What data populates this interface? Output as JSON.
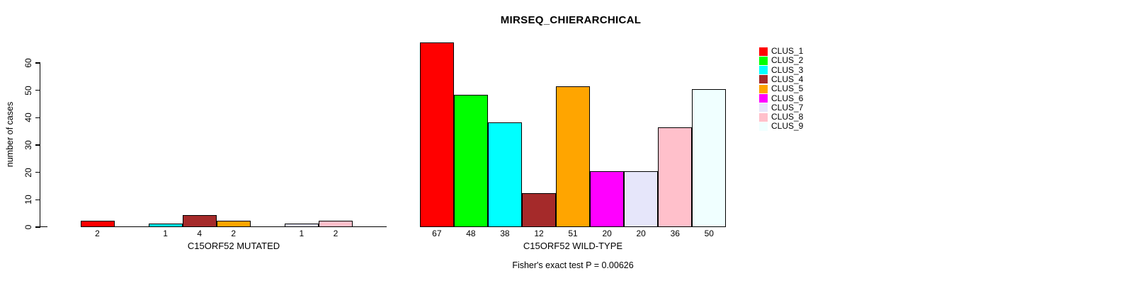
{
  "chart_data": {
    "type": "bar",
    "title": "MIRSEQ_CHIERARCHICAL",
    "ylabel": "number of cases",
    "ylim": [
      0,
      60
    ],
    "yticks": [
      0,
      10,
      20,
      30,
      40,
      50,
      60
    ],
    "grid": false,
    "legend_position": "right",
    "categories": [
      "CLUS_1",
      "CLUS_2",
      "CLUS_3",
      "CLUS_4",
      "CLUS_5",
      "CLUS_6",
      "CLUS_7",
      "CLUS_8",
      "CLUS_9"
    ],
    "colors": [
      "#ff0000",
      "#00ff00",
      "#00ffff",
      "#a52a2a",
      "#ffa500",
      "#ff00ff",
      "#e6e6fa",
      "#ffc0cb",
      "#f0ffff"
    ],
    "series": [
      {
        "name": "C15ORF52 MUTATED",
        "values": [
          2,
          0,
          1,
          4,
          2,
          0,
          1,
          2,
          0
        ],
        "bar_labels": [
          "2",
          "",
          "1",
          "4",
          "2",
          "",
          "1",
          "2",
          ""
        ]
      },
      {
        "name": "C15ORF52 WILD-TYPE",
        "values": [
          67,
          48,
          38,
          12,
          51,
          20,
          20,
          36,
          50
        ],
        "bar_labels": [
          "67",
          "48",
          "38",
          "12",
          "51",
          "20",
          "20",
          "36",
          "50"
        ]
      }
    ],
    "annotation": "Fisher's exact test P = 0.00626"
  }
}
